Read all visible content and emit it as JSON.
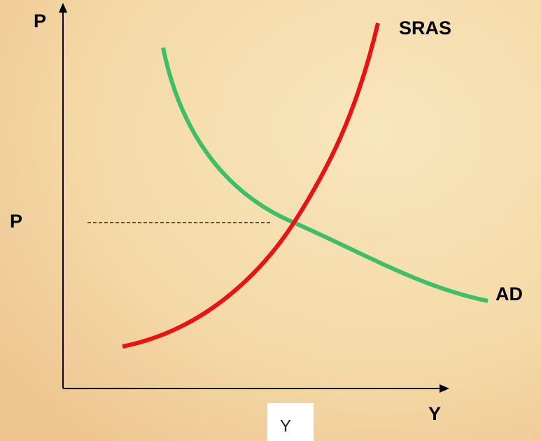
{
  "axes": {
    "y_label": "P",
    "x_label": "Y"
  },
  "curves": [
    {
      "label": "SRAS"
    },
    {
      "label": "AD"
    }
  ],
  "equilibrium": {
    "price_label": "P",
    "output_label": "Y"
  }
}
